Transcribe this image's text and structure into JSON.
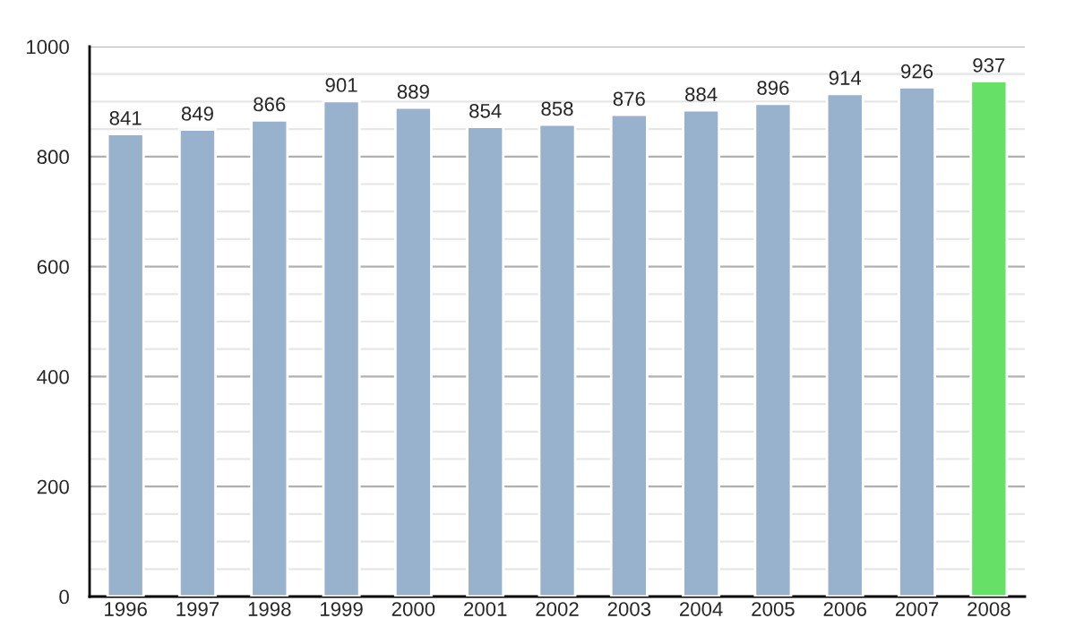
{
  "chart_data": {
    "type": "bar",
    "categories": [
      "1996",
      "1997",
      "1998",
      "1999",
      "2000",
      "2001",
      "2002",
      "2003",
      "2004",
      "2005",
      "2006",
      "2007",
      "2008"
    ],
    "values": [
      841,
      849,
      866,
      901,
      889,
      854,
      858,
      876,
      884,
      896,
      914,
      926,
      937
    ],
    "colors": [
      "#98b1cc",
      "#98b1cc",
      "#98b1cc",
      "#98b1cc",
      "#98b1cc",
      "#98b1cc",
      "#98b1cc",
      "#98b1cc",
      "#98b1cc",
      "#98b1cc",
      "#98b1cc",
      "#98b1cc",
      "#66e066"
    ],
    "ylim": [
      0,
      1000
    ],
    "yticks": [
      0,
      200,
      400,
      600,
      800,
      1000
    ],
    "grid": "y",
    "data_labels": true
  }
}
